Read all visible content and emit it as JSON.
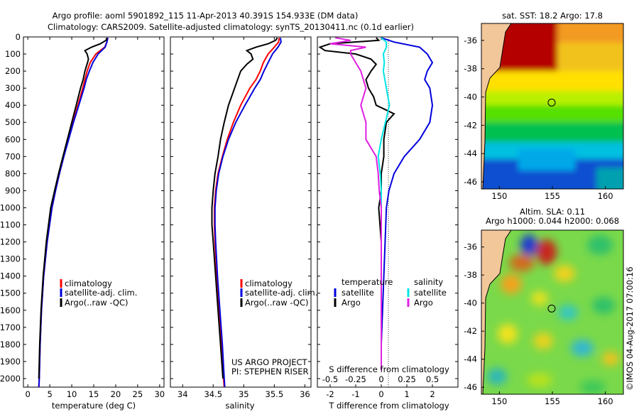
{
  "header": {
    "line1": "Argo profile: aoml 5901892_115 11-Apr-2013 40.391S 154.933E (DM data)",
    "line2": "Climatology: CARS2009. Satellite-adjusted climatology: synTS_20130411.nc (0.1d earlier)"
  },
  "project": {
    "line1": "US ARGO PROJECT",
    "line2": "PI: STEPHEN RISER"
  },
  "watermark": "©IMOS 04-Aug-2017 07:00:16",
  "colors": {
    "climatology": "#ff0000",
    "satellite": "#0000dd",
    "argo": "#000000",
    "salinity_sat": "#00e5e5",
    "salinity_argo": "#e020e0",
    "land": "#f2c79a"
  },
  "chart_data": [
    {
      "type": "line",
      "id": "temperature",
      "xlabel": "temperature (deg C)",
      "xlim": [
        -1,
        31
      ],
      "ylim": [
        2050,
        0
      ],
      "yticks": [
        0,
        100,
        200,
        300,
        400,
        500,
        600,
        700,
        800,
        900,
        1000,
        1100,
        1200,
        1300,
        1400,
        1500,
        1600,
        1700,
        1800,
        1900,
        2000
      ],
      "xticks": [
        0,
        5,
        10,
        15,
        20,
        25,
        30
      ],
      "legend": [
        "climatology",
        "satellite-adj. clim.",
        "Argo(..raw -QC)"
      ],
      "series": [
        {
          "name": "climatology",
          "depth": [
            5,
            30,
            60,
            100,
            150,
            200,
            250,
            300,
            400,
            500,
            600,
            700,
            800,
            900,
            1000,
            1200,
            1400,
            1600,
            1800,
            2000,
            2050
          ],
          "values": [
            18.2,
            18.0,
            17.5,
            15.5,
            14.2,
            13.5,
            13.0,
            12.5,
            11.4,
            10.3,
            9.2,
            8.2,
            7.2,
            6.3,
            5.5,
            4.4,
            3.6,
            3.1,
            2.8,
            2.6,
            2.5
          ]
        },
        {
          "name": "satellite-adj. clim.",
          "depth": [
            5,
            30,
            60,
            100,
            150,
            200,
            250,
            300,
            400,
            500,
            600,
            700,
            800,
            900,
            1000,
            1200,
            1400,
            1600,
            1800,
            2000,
            2050
          ],
          "values": [
            18.2,
            18.0,
            17.6,
            16.0,
            14.8,
            14.0,
            13.3,
            12.8,
            11.6,
            10.4,
            9.3,
            8.2,
            7.2,
            6.3,
            5.5,
            4.4,
            3.6,
            3.1,
            2.8,
            2.6,
            2.5
          ]
        },
        {
          "name": "Argo(..raw -QC)",
          "depth": [
            5,
            20,
            40,
            60,
            80,
            100,
            130,
            150,
            200,
            250,
            300,
            400,
            500,
            600,
            700,
            800,
            900,
            1000,
            1200,
            1400,
            1600,
            1800,
            2000
          ],
          "values": [
            18.0,
            17.8,
            16.5,
            14.5,
            13.0,
            13.5,
            13.8,
            13.6,
            13.0,
            12.6,
            12.0,
            11.0,
            10.0,
            9.0,
            8.0,
            7.0,
            6.1,
            5.2,
            4.2,
            3.5,
            3.0,
            2.7,
            2.5
          ]
        }
      ]
    },
    {
      "type": "line",
      "id": "salinity",
      "xlabel": "salinity",
      "xlim": [
        33.8,
        36.1
      ],
      "ylim": [
        2050,
        0
      ],
      "xticks": [
        34,
        34.5,
        35,
        35.5,
        36
      ],
      "legend": [
        "climatology",
        "satellite-adj. clim.",
        "Argo(..raw -QC)"
      ],
      "series": [
        {
          "name": "climatology",
          "depth": [
            5,
            30,
            60,
            100,
            150,
            200,
            250,
            300,
            400,
            500,
            600,
            700,
            800,
            900,
            1000,
            1100,
            1200,
            1400,
            1600,
            1800,
            2000,
            2050
          ],
          "values": [
            35.58,
            35.57,
            35.5,
            35.4,
            35.32,
            35.27,
            35.2,
            35.1,
            34.95,
            34.83,
            34.73,
            34.65,
            34.58,
            34.54,
            34.52,
            34.52,
            34.53,
            34.56,
            34.6,
            34.64,
            34.67,
            34.68
          ]
        },
        {
          "name": "satellite-adj. clim.",
          "depth": [
            5,
            30,
            60,
            100,
            150,
            200,
            250,
            300,
            400,
            500,
            600,
            700,
            800,
            900,
            1000,
            1100,
            1200,
            1400,
            1600,
            1800,
            2000,
            2050
          ],
          "values": [
            35.6,
            35.61,
            35.56,
            35.47,
            35.4,
            35.33,
            35.27,
            35.18,
            35.02,
            34.87,
            34.75,
            34.66,
            34.59,
            34.55,
            34.53,
            34.53,
            34.54,
            34.57,
            34.61,
            34.65,
            34.68,
            34.69
          ]
        },
        {
          "name": "Argo(..raw -QC)",
          "depth": [
            5,
            20,
            40,
            60,
            80,
            100,
            130,
            160,
            200,
            250,
            300,
            350,
            400,
            500,
            600,
            700,
            800,
            900,
            1000,
            1100,
            1200,
            1400,
            1600,
            1800,
            2000
          ],
          "values": [
            35.55,
            35.52,
            35.4,
            35.2,
            35.05,
            35.12,
            35.15,
            35.05,
            34.95,
            34.9,
            34.85,
            34.8,
            34.75,
            34.68,
            34.62,
            34.58,
            34.53,
            34.5,
            34.48,
            34.48,
            34.5,
            34.54,
            34.58,
            34.62,
            34.66
          ]
        }
      ]
    },
    {
      "type": "line",
      "id": "difference",
      "xlabel_top": "S difference from climatology",
      "xlabel": "T difference from climatology",
      "xlim_T": [
        -2.5,
        3.0
      ],
      "xticks_T": [
        -2,
        -1,
        0,
        1,
        2
      ],
      "xticks_S": [
        "-0.5",
        "-0.25",
        "0",
        "0.25",
        "0.5"
      ],
      "ylim": [
        2050,
        0
      ],
      "legend_temperature": [
        "temperature",
        "satellite",
        "Argo"
      ],
      "legend_salinity": [
        "salinity",
        "satellite",
        "Argo"
      ],
      "series": [
        {
          "name": "T satellite",
          "depth": [
            5,
            30,
            60,
            100,
            150,
            200,
            250,
            300,
            400,
            500,
            600,
            700,
            800,
            900,
            1000,
            1200,
            1400,
            1600,
            1800,
            1950
          ],
          "values": [
            0.0,
            0.5,
            1.5,
            1.8,
            2.0,
            1.8,
            1.7,
            1.9,
            2.0,
            1.9,
            1.5,
            0.9,
            0.5,
            0.3,
            0.2,
            0.15,
            0.1,
            0.05,
            0.0,
            0.0
          ]
        },
        {
          "name": "T Argo",
          "depth": [
            5,
            20,
            40,
            60,
            80,
            100,
            130,
            160,
            200,
            250,
            300,
            350,
            400,
            450,
            500,
            600,
            700,
            800,
            900,
            1000,
            1200,
            1400,
            1600,
            1800,
            1950
          ],
          "values": [
            -0.2,
            -0.1,
            -2.0,
            -2.4,
            -2.2,
            -1.0,
            -0.4,
            -0.2,
            -0.4,
            -0.6,
            -0.5,
            -0.3,
            -0.2,
            0.5,
            0.2,
            0.1,
            0.1,
            0.0,
            0.0,
            -0.1,
            0.0,
            0.0,
            0.0,
            0.0,
            0.0
          ]
        },
        {
          "name": "S satellite",
          "depth": [
            5,
            30,
            60,
            100,
            150,
            200,
            300,
            400,
            500,
            600,
            700,
            800,
            900,
            1000,
            1200,
            1400,
            1600,
            1800,
            1950
          ],
          "values": [
            0.0,
            0.05,
            0.05,
            0.02,
            0.03,
            0.02,
            0.05,
            0.08,
            0.04,
            0.0,
            -0.03,
            -0.01,
            0.0,
            0.0,
            0.0,
            0.0,
            0.0,
            0.0,
            0.0
          ]
        },
        {
          "name": "S Argo",
          "depth": [
            5,
            20,
            40,
            60,
            80,
            100,
            150,
            200,
            300,
            400,
            500,
            600,
            700,
            800,
            900,
            1000,
            1200,
            1400,
            1600,
            1800,
            1950
          ],
          "values": [
            -0.45,
            -0.3,
            -0.5,
            -0.15,
            -0.3,
            -0.3,
            -0.25,
            -0.2,
            -0.15,
            -0.2,
            -0.15,
            -0.15,
            -0.05,
            -0.03,
            -0.02,
            0.0,
            0.0,
            0.0,
            0.0,
            0.0,
            0.0
          ]
        }
      ]
    },
    {
      "type": "heatmap",
      "id": "sst_map",
      "title": "sat. SST: 18.2 Argo: 17.8",
      "xticks": [
        "150",
        "155",
        "160"
      ],
      "yticks": [
        "-36",
        "-38",
        "-40",
        "-42",
        "-44",
        "-46"
      ],
      "marker": {
        "lon": 154.93,
        "lat": -40.39
      }
    },
    {
      "type": "heatmap",
      "id": "sla_map",
      "title1": "Altim. SLA: 0.11",
      "title2": "Argo h1000: 0.044 h2000: 0.068",
      "xticks": [
        "150",
        "155",
        "160"
      ],
      "yticks": [
        "-36",
        "-38",
        "-40",
        "-42",
        "-44",
        "-46"
      ],
      "marker": {
        "lon": 154.93,
        "lat": -40.39
      }
    }
  ]
}
